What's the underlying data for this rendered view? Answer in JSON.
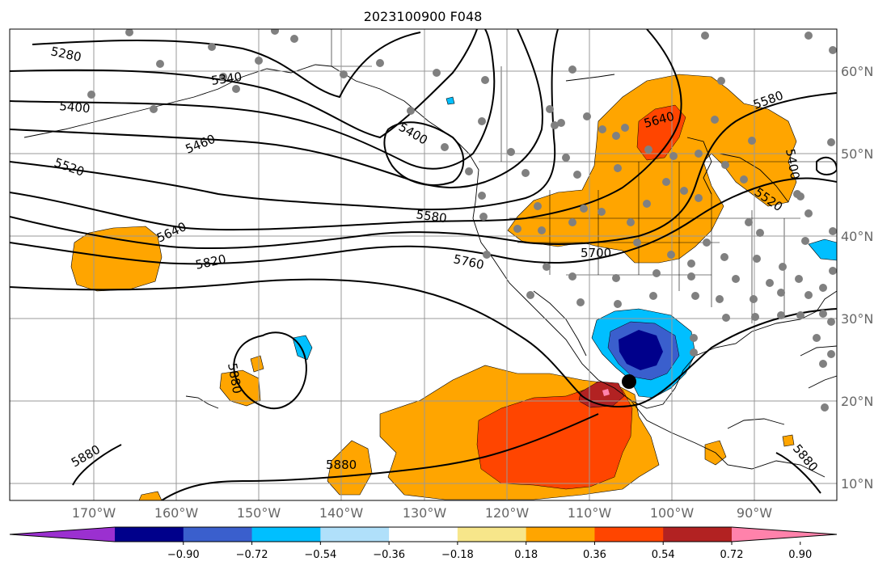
{
  "title": "2023100900 F048",
  "map": {
    "lat_labels": [
      "60°N",
      "50°N",
      "40°N",
      "30°N",
      "20°N",
      "10°N"
    ],
    "lon_labels": [
      "170°W",
      "160°W",
      "150°W",
      "140°W",
      "130°W",
      "120°W",
      "110°W",
      "100°W",
      "90°W"
    ],
    "grid": true,
    "contour_labels": [
      "5280",
      "5340",
      "5400",
      "5460",
      "5520",
      "5640",
      "5820",
      "5400",
      "5580",
      "5760",
      "5700",
      "5640",
      "5580",
      "5400",
      "5520",
      "5880",
      "5880",
      "5880",
      "5880"
    ],
    "fill_color_legend": "orange/red = positive, blue = negative"
  },
  "colorbar": {
    "tick_labels": [
      "−0.90",
      "−0.72",
      "−0.54",
      "−0.36",
      "−0.18",
      "0.18",
      "0.36",
      "0.54",
      "0.72",
      "0.90"
    ],
    "colors": [
      "#9b30d0",
      "#00008b",
      "#3a5fcd",
      "#00bfff",
      "#b0e0fa",
      "#ffffff",
      "#f7e68a",
      "#ffa500",
      "#ff4500",
      "#b22222",
      "#ff82ab"
    ],
    "extend": "both"
  }
}
